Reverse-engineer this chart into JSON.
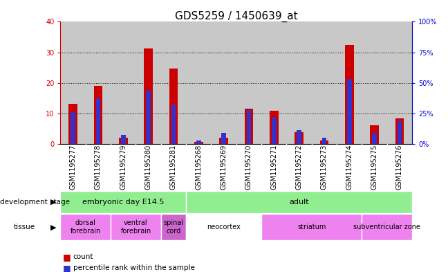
{
  "title": "GDS5259 / 1450639_at",
  "samples": [
    "GSM1195277",
    "GSM1195278",
    "GSM1195279",
    "GSM1195280",
    "GSM1195281",
    "GSM1195268",
    "GSM1195269",
    "GSM1195270",
    "GSM1195271",
    "GSM1195272",
    "GSM1195273",
    "GSM1195274",
    "GSM1195275",
    "GSM1195276"
  ],
  "count_values": [
    13.2,
    19.0,
    2.2,
    31.2,
    24.8,
    0.7,
    2.0,
    11.5,
    11.0,
    3.8,
    1.2,
    32.5,
    6.2,
    8.5
  ],
  "percentile_values": [
    10.5,
    15.0,
    3.0,
    17.5,
    13.0,
    1.25,
    3.75,
    11.25,
    8.75,
    4.5,
    2.0,
    21.25,
    3.75,
    7.5
  ],
  "left_ylim": [
    0,
    40
  ],
  "right_ylim": [
    0,
    100
  ],
  "left_yticks": [
    0,
    10,
    20,
    30,
    40
  ],
  "right_yticks": [
    0,
    25,
    50,
    75,
    100
  ],
  "right_yticklabels": [
    "0%",
    "25%",
    "50%",
    "75%",
    "100%"
  ],
  "count_color": "#cc0000",
  "percentile_color": "#3333cc",
  "bar_bg_color": "#c8c8c8",
  "chart_bg_color": "#ffffff",
  "dev_stage_color": "#90ee90",
  "dev_stages": [
    {
      "label": "embryonic day E14.5",
      "start": 0,
      "end": 4
    },
    {
      "label": "adult",
      "start": 5,
      "end": 13
    }
  ],
  "tissues": [
    {
      "label": "dorsal\nforebrain",
      "start": 0,
      "end": 1,
      "color": "#ee82ee"
    },
    {
      "label": "ventral\nforebrain",
      "start": 2,
      "end": 3,
      "color": "#ee82ee"
    },
    {
      "label": "spinal\ncord",
      "start": 4,
      "end": 4,
      "color": "#cc66cc"
    },
    {
      "label": "neocortex",
      "start": 5,
      "end": 7,
      "color": "#ffffff"
    },
    {
      "label": "striatum",
      "start": 8,
      "end": 11,
      "color": "#ee82ee"
    },
    {
      "label": "subventricular zone",
      "start": 12,
      "end": 13,
      "color": "#ee82ee"
    }
  ],
  "grid_color": "#000000",
  "axis_color_left": "#cc0000",
  "axis_color_right": "#0000cc",
  "background_color": "#ffffff",
  "title_fontsize": 11,
  "tick_fontsize": 7,
  "label_fontsize": 8,
  "legend_count_label": "count",
  "legend_percentile_label": "percentile rank within the sample"
}
